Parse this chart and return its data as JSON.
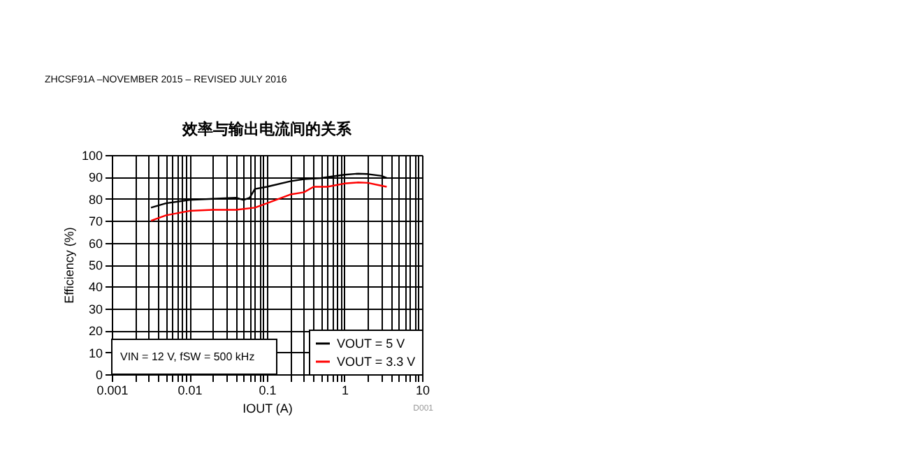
{
  "chart_data": {
    "type": "line",
    "title": "效率与输出电流间的关系",
    "xlabel": "IOUT (A)",
    "ylabel": "Efficiency (%)",
    "annotations": [
      "ZHCSF91A –NOVEMBER 2015 – REVISED JULY 2016",
      "VIN = 12 V, fSW = 500 kHz",
      "D001"
    ],
    "log": "x",
    "grid": true,
    "legend": "bottom right",
    "line_style": "solid",
    "marker": "none",
    "xlim": [
      0.001,
      10
    ],
    "ylim": [
      0,
      100
    ],
    "xticks": [
      0.001,
      {
        "value": 0.002,
        "label": null
      },
      {
        "value": 0.003,
        "label": null
      },
      {
        "value": 0.004,
        "label": null
      },
      {
        "value": 0.005,
        "label": null
      },
      {
        "value": 0.006,
        "label": null
      },
      {
        "value": 0.007,
        "label": null
      },
      {
        "value": 0.008,
        "label": null
      },
      {
        "value": 0.009,
        "label": null
      },
      0.01,
      {
        "value": 0.02,
        "label": null
      },
      {
        "value": 0.03,
        "label": null
      },
      {
        "value": 0.04,
        "label": null
      },
      {
        "value": 0.05,
        "label": null
      },
      {
        "value": 0.06,
        "label": null
      },
      {
        "value": 0.07,
        "label": null
      },
      {
        "value": 0.08,
        "label": null
      },
      {
        "value": 0.09,
        "label": null
      },
      0.1,
      {
        "value": 0.2,
        "label": null
      },
      {
        "value": 0.3,
        "label": null
      },
      {
        "value": 0.4,
        "label": null
      },
      {
        "value": 0.5,
        "label": null
      },
      {
        "value": 0.6,
        "label": null
      },
      {
        "value": 0.7,
        "label": null
      },
      {
        "value": 0.8,
        "label": null
      },
      {
        "value": 0.9,
        "label": null
      },
      1,
      {
        "value": 2,
        "label": null
      },
      {
        "value": 3,
        "label": null
      },
      {
        "value": 4,
        "label": null
      },
      {
        "value": 5,
        "label": null
      },
      {
        "value": 6,
        "label": null
      },
      {
        "value": 7,
        "label": null
      },
      {
        "value": 8,
        "label": null
      },
      {
        "value": 9,
        "label": null
      },
      10
    ],
    "yticks": [
      0,
      10,
      20,
      30,
      40,
      50,
      60,
      70,
      80,
      90,
      100
    ],
    "series": [
      {
        "name": "VOUT = 5 V",
        "color": "#000000",
        "x": [
          0.0032,
          0.005,
          0.01,
          0.02,
          0.04,
          0.05,
          0.06,
          0.07,
          0.1,
          0.2,
          0.3,
          0.5,
          1,
          1.5,
          2,
          3,
          3.5
        ],
        "values": [
          76,
          78,
          79.5,
          80,
          80.5,
          79.5,
          80.5,
          84.5,
          85.5,
          88,
          89,
          89.5,
          91,
          91.5,
          91.3,
          90.5,
          89.5
        ]
      },
      {
        "name": "VOUT = 3.3 V",
        "color": "#ff0000",
        "x": [
          0.0032,
          0.005,
          0.01,
          0.02,
          0.04,
          0.07,
          0.1,
          0.2,
          0.3,
          0.4,
          0.6,
          1,
          1.5,
          2,
          3,
          3.5
        ],
        "values": [
          70,
          72.5,
          74.5,
          75,
          75,
          76,
          78,
          82,
          83,
          85.5,
          85.5,
          87,
          87.5,
          87.3,
          86,
          85.5
        ]
      }
    ]
  }
}
